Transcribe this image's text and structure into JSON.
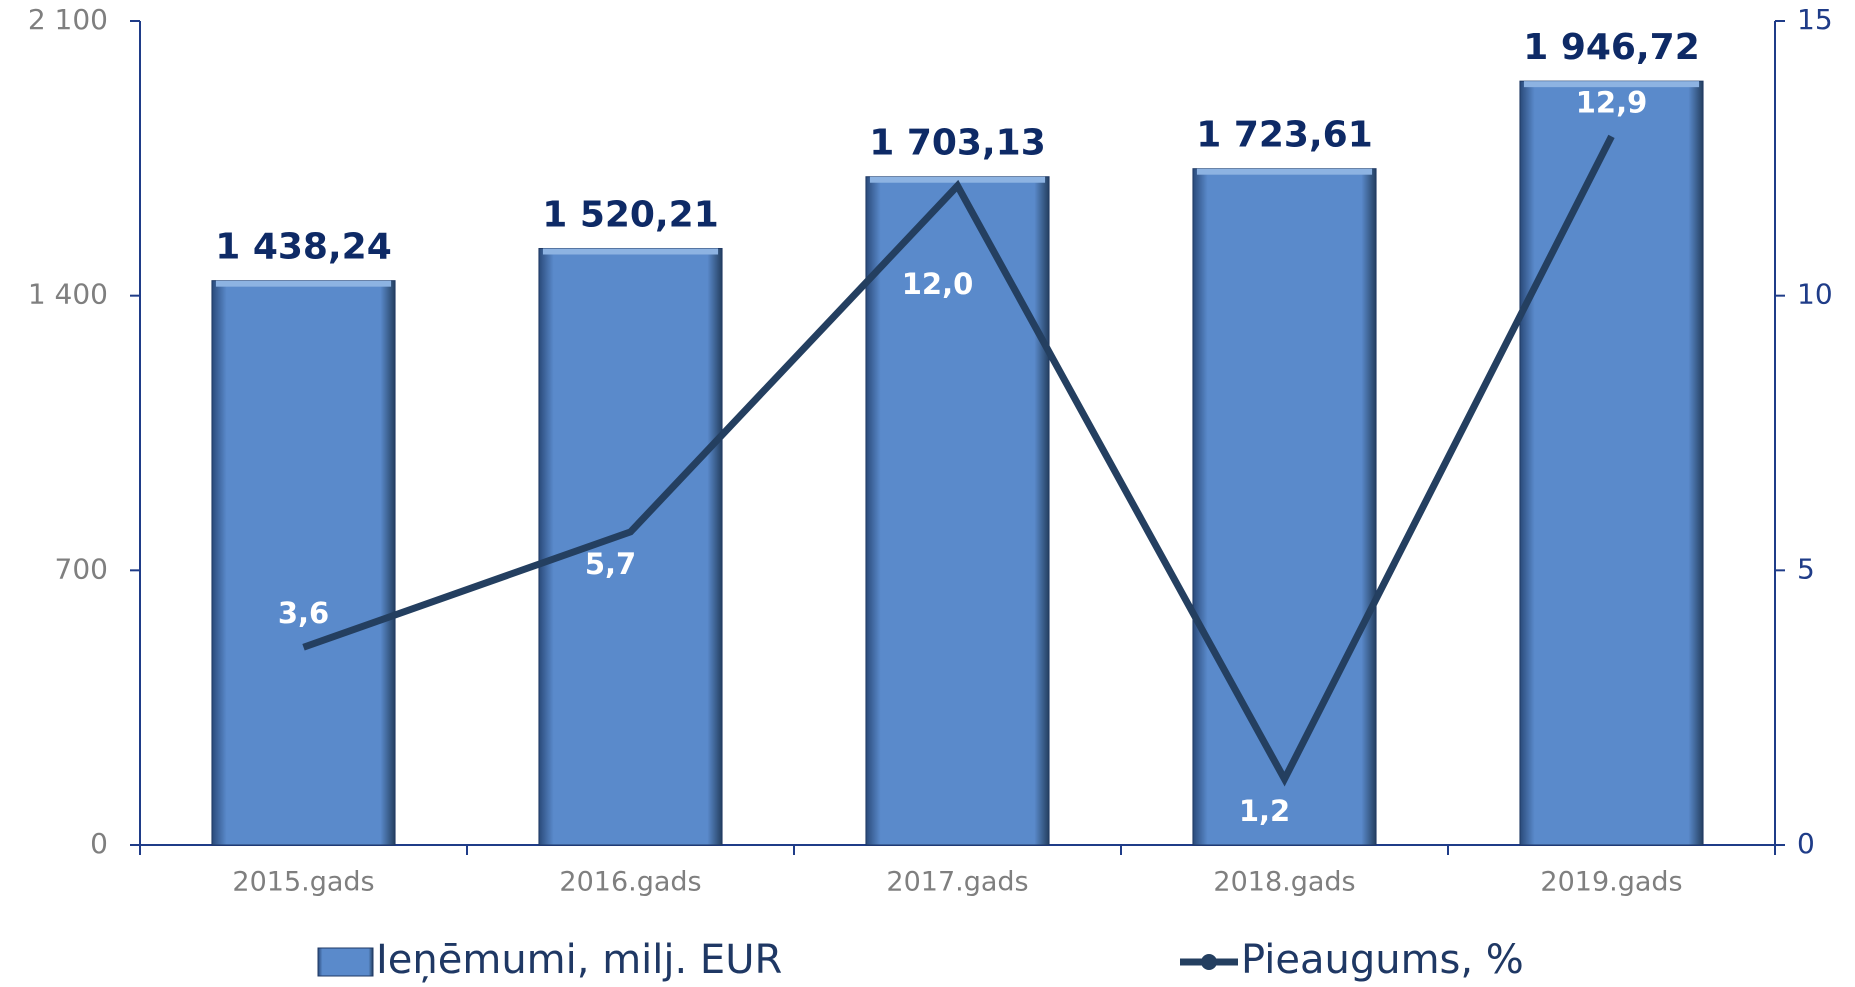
{
  "chart_data": {
    "type": "bar",
    "categories": [
      "2015.gads",
      "2016.gads",
      "2017.gads",
      "2018.gads",
      "2019.gads"
    ],
    "series": [
      {
        "name": "Ieņēmumi, milj. EUR",
        "type": "bar",
        "color": "#5a8acb",
        "values": [
          1438.24,
          1520.21,
          1703.13,
          1723.61,
          1946.72
        ],
        "value_labels": [
          "1 438,24",
          "1 520,21",
          "1 703,13",
          "1 723,61",
          "1 946,72"
        ]
      },
      {
        "name": "Pieaugums, %",
        "type": "line",
        "axis": "y2",
        "color": "#243f60",
        "values": [
          3.6,
          5.7,
          12.0,
          1.2,
          12.9
        ],
        "value_labels": [
          "3,6",
          "5,7",
          "12,0",
          "1,2",
          "12,9"
        ]
      }
    ],
    "ylim": [
      0,
      2100
    ],
    "yticks": [
      0,
      700,
      {
        "value": 1400,
        "label": "1 400"
      },
      {
        "value": 2100,
        "label": "2 100"
      }
    ],
    "y2lim": [
      0,
      15
    ],
    "y2ticks": [
      0,
      5,
      10,
      15
    ],
    "legend": "bottom"
  }
}
